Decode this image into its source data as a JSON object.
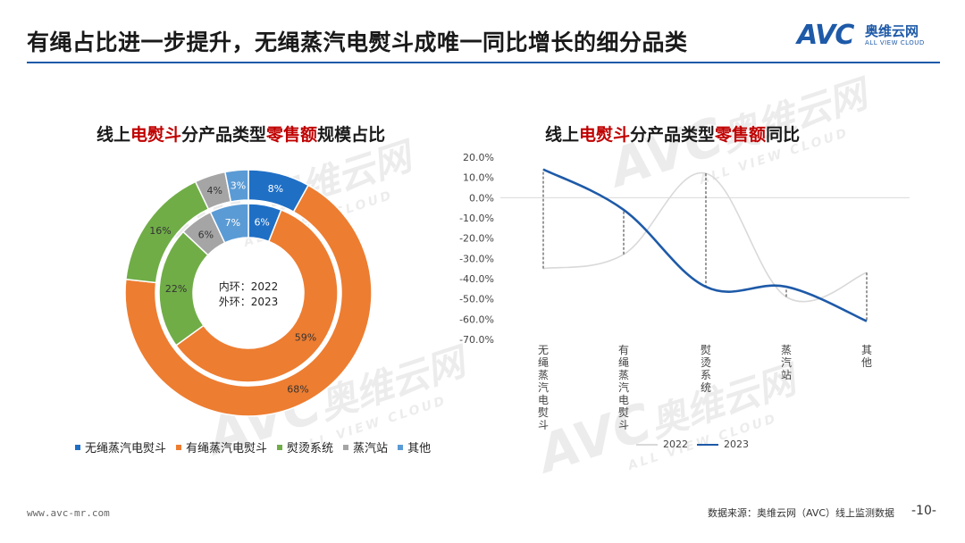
{
  "header": {
    "title": "有绳占比进一步提升，无绳蒸汽电熨斗成唯一同比增长的细分品类",
    "logo_mark": "AVC",
    "logo_cn": "奥维云网",
    "logo_en": "ALL VIEW CLOUD"
  },
  "watermark": {
    "mark": "AVC",
    "cn": "奥维云网",
    "en": "ALL VIEW CLOUD"
  },
  "footer": {
    "url": "www.avc-mr.com",
    "source": "数据来源：奥维云网（AVC）线上监测数据",
    "page": "-10-"
  },
  "colors": {
    "blue": "#1f6fc5",
    "orange": "#ed7d31",
    "green": "#70ad47",
    "gray": "#a5a5a5",
    "lightblue": "#5b9bd5",
    "line2022": "#d9d9d9",
    "line2023": "#1e5aa8",
    "highlight": "#c00000"
  },
  "chart_data": [
    {
      "type": "pie",
      "title_parts": [
        "线上",
        "电熨斗",
        "分产品类型",
        "零售额",
        "规模占比"
      ],
      "center_label": [
        "内环：2022",
        "外环：2023"
      ],
      "categories": [
        "无绳蒸汽电熨斗",
        "有绳蒸汽电熨斗",
        "熨烫系统",
        "蒸汽站",
        "其他"
      ],
      "series": [
        {
          "name": "2022",
          "ring": "inner",
          "values": [
            6,
            59,
            22,
            6,
            7
          ],
          "labels": [
            "6%",
            "59%",
            "22%",
            "6%",
            "7%"
          ]
        },
        {
          "name": "2023",
          "ring": "outer",
          "values": [
            8,
            68,
            16,
            4,
            3
          ],
          "labels": [
            "8%",
            "68%",
            "16%",
            "4%",
            "3%"
          ]
        }
      ],
      "legend_position": "bottom"
    },
    {
      "type": "line",
      "title_parts": [
        "线上",
        "电熨斗",
        "分产品类型",
        "零售额",
        "同比"
      ],
      "categories": [
        "无绳蒸汽电熨斗",
        "有绳蒸汽电熨斗",
        "熨烫系统",
        "蒸汽站",
        "其他"
      ],
      "series": [
        {
          "name": "2022",
          "values": [
            -35,
            -28,
            12,
            -49,
            -37
          ]
        },
        {
          "name": "2023",
          "values": [
            14,
            -6,
            -44,
            -44,
            -61
          ]
        }
      ],
      "ylim": [
        -70,
        20
      ],
      "yticks": [
        "20.0%",
        "10.0%",
        "0.0%",
        "-10.0%",
        "-20.0%",
        "-30.0%",
        "-40.0%",
        "-50.0%",
        "-60.0%",
        "-70.0%"
      ],
      "drop_lines": true,
      "legend_position": "bottom"
    }
  ]
}
